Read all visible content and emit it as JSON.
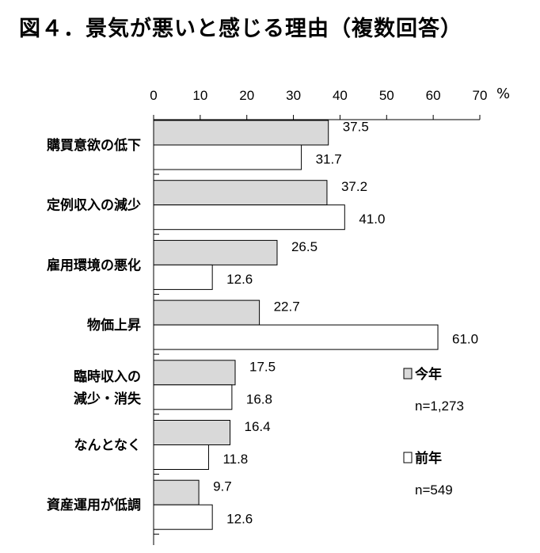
{
  "title": "図４．景気が悪いと感じる理由（複数回答）",
  "chart_data": {
    "type": "bar",
    "orientation": "horizontal",
    "title": "図４．景気が悪いと感じる理由（複数回答）",
    "unit": "%",
    "xlim": [
      0,
      70
    ],
    "ticks": [
      "0",
      "10",
      "20",
      "30",
      "40",
      "50",
      "60",
      "70"
    ],
    "categories": [
      [
        "購買意欲の低下"
      ],
      [
        "定例収入の減少"
      ],
      [
        "雇用環境の悪化"
      ],
      [
        "物価上昇"
      ],
      [
        "臨時収入の",
        "減少・消失"
      ],
      [
        "なんとなく"
      ],
      [
        "資産運用が低調"
      ]
    ],
    "series": [
      {
        "name": "今年",
        "n": "n=1,273",
        "color": "#d9d9d9",
        "values": [
          37.5,
          37.2,
          26.5,
          22.7,
          17.5,
          16.4,
          9.7
        ],
        "labels": [
          "37.5",
          "37.2",
          "26.5",
          "22.7",
          "17.5",
          "16.4",
          "9.7"
        ]
      },
      {
        "name": "前年",
        "n": "n=549",
        "color": "#ffffff",
        "values": [
          31.7,
          41.0,
          12.6,
          61.0,
          16.8,
          11.8,
          12.6
        ],
        "labels": [
          "31.7",
          "41.0",
          "12.6",
          "61.0",
          "16.8",
          "11.8",
          "12.6"
        ]
      }
    ],
    "legend_position": "right"
  }
}
